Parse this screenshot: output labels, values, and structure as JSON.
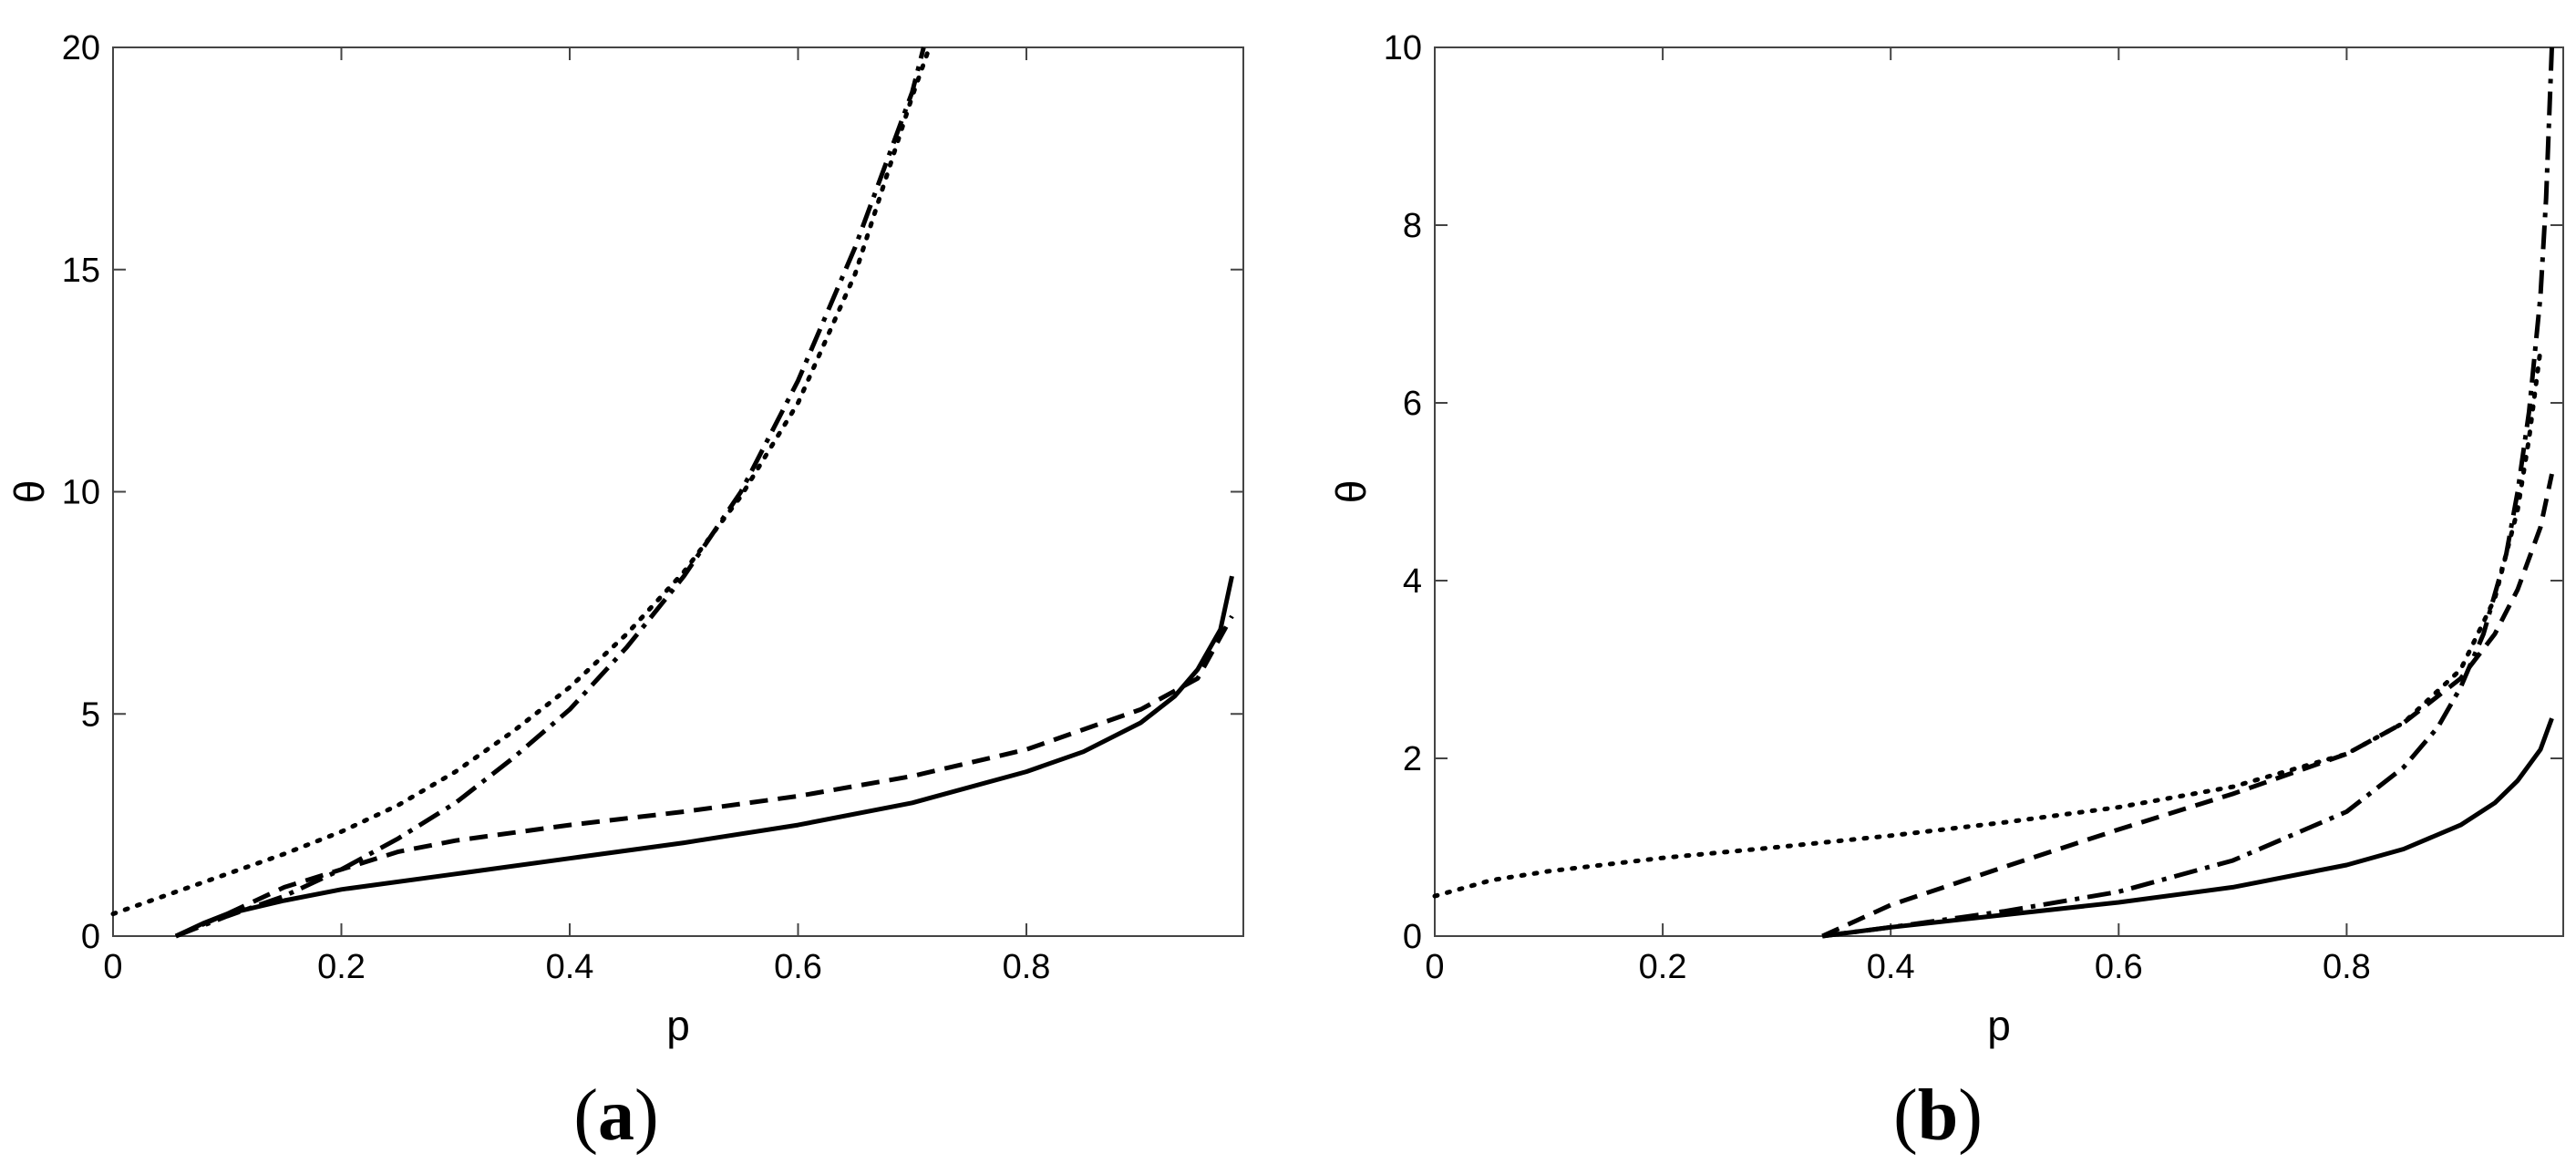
{
  "chart_data": [
    {
      "panel": "(a)",
      "type": "line",
      "xlabel": "p",
      "ylabel": "θ",
      "xlim": [
        0,
        0.99
      ],
      "ylim": [
        0,
        20
      ],
      "xticks": [
        "0",
        "0.2",
        "0.4",
        "0.6",
        "0.8"
      ],
      "yticks": [
        "0",
        "5",
        "10",
        "15",
        "20"
      ],
      "grid": false,
      "series": [
        {
          "style": "solid",
          "x": [
            0.055,
            0.08,
            0.1,
            0.15,
            0.2,
            0.3,
            0.4,
            0.5,
            0.6,
            0.7,
            0.8,
            0.85,
            0.9,
            0.93,
            0.95,
            0.97,
            0.98
          ],
          "y": [
            0,
            0.3,
            0.5,
            0.8,
            1.05,
            1.4,
            1.75,
            2.1,
            2.5,
            3.0,
            3.7,
            4.15,
            4.8,
            5.4,
            6.0,
            6.9,
            8.1
          ]
        },
        {
          "style": "dashed",
          "x": [
            0.055,
            0.1,
            0.15,
            0.2,
            0.25,
            0.3,
            0.4,
            0.5,
            0.6,
            0.7,
            0.8,
            0.9,
            0.95,
            0.98
          ],
          "y": [
            0,
            0.5,
            1.1,
            1.5,
            1.9,
            2.15,
            2.5,
            2.8,
            3.15,
            3.6,
            4.2,
            5.1,
            5.8,
            7.2
          ]
        },
        {
          "style": "dash-dot",
          "x": [
            0.055,
            0.1,
            0.15,
            0.2,
            0.25,
            0.3,
            0.35,
            0.4,
            0.45,
            0.5,
            0.55,
            0.6,
            0.65,
            0.7,
            0.71
          ],
          "y": [
            0,
            0.45,
            0.9,
            1.5,
            2.2,
            3.0,
            4.0,
            5.1,
            6.5,
            8.1,
            10.0,
            12.5,
            15.5,
            19.0,
            20.0
          ]
        },
        {
          "style": "dotted",
          "x": [
            0.0,
            0.05,
            0.1,
            0.15,
            0.2,
            0.25,
            0.3,
            0.35,
            0.4,
            0.45,
            0.5,
            0.55,
            0.6,
            0.65,
            0.7,
            0.715
          ],
          "y": [
            0.5,
            0.95,
            1.4,
            1.85,
            2.35,
            2.95,
            3.7,
            4.6,
            5.6,
            6.8,
            8.2,
            9.9,
            12.0,
            14.9,
            18.9,
            20.0
          ]
        }
      ]
    },
    {
      "panel": "(b)",
      "type": "line",
      "xlabel": "p",
      "ylabel": "θ",
      "xlim": [
        0,
        0.99
      ],
      "ylim": [
        0,
        10
      ],
      "xticks": [
        "0",
        "0.2",
        "0.4",
        "0.6",
        "0.8"
      ],
      "yticks": [
        "0",
        "2",
        "4",
        "6",
        "8",
        "10"
      ],
      "grid": false,
      "series": [
        {
          "style": "solid",
          "x": [
            0.34,
            0.4,
            0.5,
            0.6,
            0.7,
            0.8,
            0.85,
            0.9,
            0.93,
            0.95,
            0.97,
            0.98
          ],
          "y": [
            0,
            0.1,
            0.24,
            0.38,
            0.55,
            0.8,
            0.98,
            1.25,
            1.5,
            1.75,
            2.1,
            2.45
          ]
        },
        {
          "style": "dashed",
          "x": [
            0.34,
            0.4,
            0.5,
            0.6,
            0.7,
            0.8,
            0.85,
            0.9,
            0.93,
            0.95,
            0.97,
            0.98
          ],
          "y": [
            0,
            0.35,
            0.78,
            1.2,
            1.6,
            2.05,
            2.4,
            2.9,
            3.4,
            3.9,
            4.6,
            5.2
          ]
        },
        {
          "style": "dash-dot",
          "x": [
            0.34,
            0.4,
            0.5,
            0.6,
            0.7,
            0.8,
            0.85,
            0.88,
            0.9,
            0.92,
            0.94,
            0.95,
            0.96,
            0.97,
            0.975,
            0.98
          ],
          "y": [
            0,
            0.1,
            0.28,
            0.5,
            0.85,
            1.4,
            1.9,
            2.35,
            2.8,
            3.4,
            4.3,
            5.0,
            5.9,
            7.2,
            8.3,
            10.0
          ]
        },
        {
          "style": "dotted",
          "x": [
            0.0,
            0.05,
            0.1,
            0.2,
            0.3,
            0.4,
            0.5,
            0.6,
            0.7,
            0.8,
            0.85,
            0.9,
            0.93,
            0.95,
            0.96,
            0.97
          ],
          "y": [
            0.45,
            0.63,
            0.73,
            0.88,
            1.0,
            1.13,
            1.28,
            1.45,
            1.68,
            2.05,
            2.4,
            3.0,
            3.8,
            4.8,
            5.6,
            6.6
          ]
        }
      ]
    }
  ],
  "panel_labels": [
    "(a)",
    "(b)"
  ]
}
